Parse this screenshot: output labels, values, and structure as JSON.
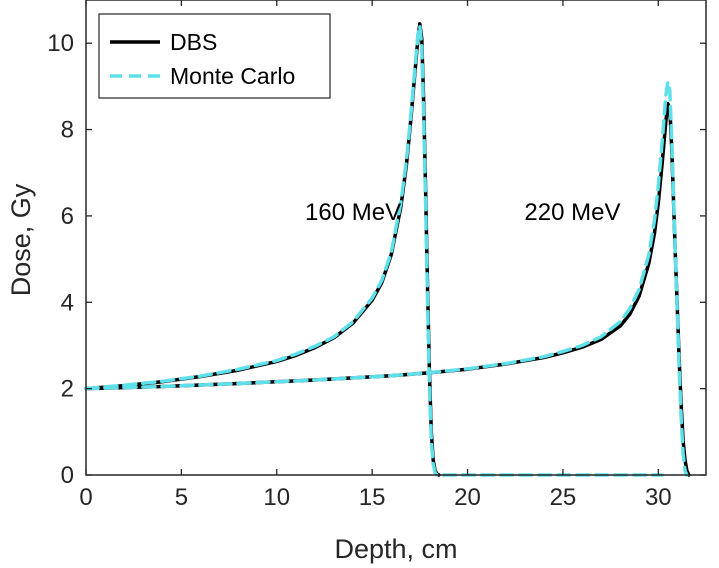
{
  "chart_data": {
    "type": "line",
    "title": "",
    "xlabel": "Depth, cm",
    "ylabel": "Dose, Gy",
    "xlim": [
      0,
      32.5
    ],
    "ylim": [
      0,
      11
    ],
    "xticks": [
      0,
      5,
      10,
      15,
      20,
      25,
      30
    ],
    "yticks": [
      0,
      2,
      4,
      6,
      8,
      10
    ],
    "legend": {
      "location": "top-left",
      "entries": [
        "DBS",
        "Monte Carlo"
      ]
    },
    "colors": {
      "dbs": "#000000",
      "mc": "#5ee0ea",
      "axis": "#262626"
    },
    "series": [
      {
        "name": "DBS",
        "style": "solid",
        "curves": [
          {
            "energy": "160 MeV",
            "x": [
              0,
              2,
              4,
              6,
              8,
              10,
              11,
              12,
              13,
              14,
              15,
              15.5,
              16,
              16.5,
              16.8,
              17.0,
              17.2,
              17.4,
              17.5,
              17.6,
              17.7,
              17.8,
              17.9,
              18.0,
              18.1,
              18.2,
              18.3,
              18.4,
              18.5
            ],
            "y": [
              2.0,
              2.07,
              2.16,
              2.28,
              2.43,
              2.63,
              2.77,
              2.95,
              3.18,
              3.52,
              4.05,
              4.45,
              5.1,
              6.2,
              7.2,
              8.1,
              9.1,
              10.1,
              10.45,
              10.1,
              8.6,
              6.6,
              4.4,
              2.4,
              1.0,
              0.35,
              0.1,
              0.02,
              0.0
            ]
          },
          {
            "energy": "220 MeV",
            "x": [
              0,
              4,
              8,
              12,
              16,
              18,
              20,
              22,
              24,
              25,
              26,
              27,
              28,
              28.5,
              29,
              29.5,
              29.8,
              30.0,
              30.2,
              30.4,
              30.5,
              30.6,
              30.7,
              30.8,
              30.9,
              31.0,
              31.1,
              31.2,
              31.3,
              31.4,
              31.5,
              31.6
            ],
            "y": [
              2.0,
              2.05,
              2.12,
              2.2,
              2.3,
              2.37,
              2.45,
              2.57,
              2.72,
              2.83,
              2.96,
              3.14,
              3.45,
              3.72,
              4.15,
              4.9,
              5.6,
              6.3,
              7.2,
              8.2,
              8.6,
              8.5,
              7.6,
              6.3,
              5.0,
              3.8,
              2.6,
              1.6,
              0.8,
              0.35,
              0.1,
              0.0
            ]
          }
        ]
      },
      {
        "name": "Monte Carlo",
        "style": "dashed",
        "curves": [
          {
            "energy": "160 MeV",
            "x": [
              0,
              2,
              4,
              6,
              8,
              10,
              11,
              12,
              13,
              14,
              15,
              15.5,
              16,
              16.5,
              16.8,
              17.0,
              17.2,
              17.4,
              17.5,
              17.6,
              17.7,
              17.8,
              17.9,
              18.0,
              18.1,
              18.2,
              18.3,
              18.4,
              19,
              22,
              25,
              28,
              30,
              30.2
            ],
            "y": [
              2.0,
              2.08,
              2.17,
              2.29,
              2.45,
              2.65,
              2.8,
              2.98,
              3.2,
              3.55,
              4.1,
              4.5,
              5.15,
              6.3,
              7.3,
              8.2,
              9.2,
              10.2,
              10.4,
              9.9,
              8.3,
              6.3,
              4.1,
              2.1,
              0.8,
              0.25,
              0.05,
              0.0,
              0.0,
              0.0,
              0.0,
              0.0,
              0.0,
              0.0
            ]
          },
          {
            "energy": "220 MeV",
            "x": [
              0,
              4,
              8,
              12,
              16,
              18,
              20,
              22,
              24,
              25,
              26,
              27,
              28,
              28.5,
              29,
              29.5,
              29.8,
              30.0,
              30.2,
              30.4,
              30.5,
              30.6,
              30.7,
              30.8,
              30.9,
              31.0,
              31.1,
              31.2,
              31.3,
              31.4,
              31.5
            ],
            "y": [
              2.0,
              2.05,
              2.12,
              2.2,
              2.3,
              2.37,
              2.46,
              2.58,
              2.74,
              2.86,
              3.0,
              3.2,
              3.55,
              3.85,
              4.3,
              5.1,
              5.9,
              6.7,
              7.7,
              8.8,
              9.1,
              8.9,
              7.8,
              6.4,
              5.0,
              3.7,
              2.4,
              1.3,
              0.5,
              0.1,
              0.0
            ]
          }
        ]
      }
    ],
    "annotations": [
      {
        "text": "160 MeV",
        "x": 14,
        "y": 5.9
      },
      {
        "text": "220 MeV",
        "x": 25.5,
        "y": 5.9
      }
    ]
  }
}
